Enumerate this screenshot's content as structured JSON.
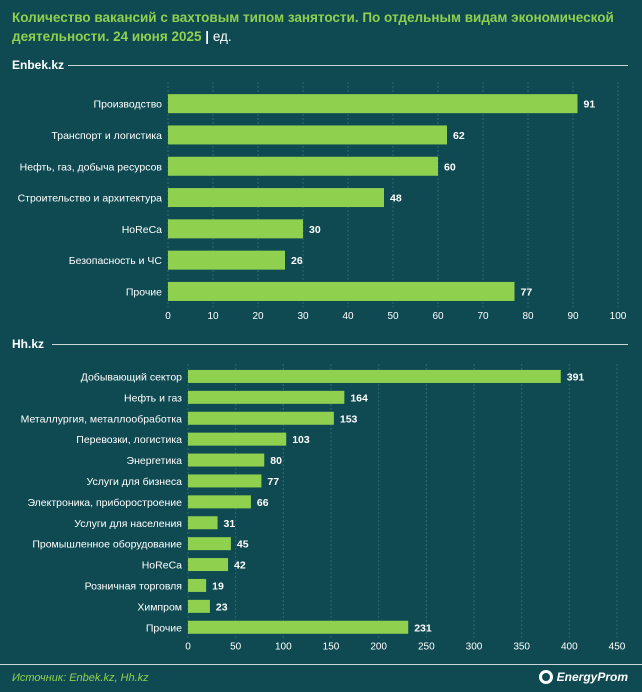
{
  "title": {
    "main": "Количество вакансий с вахтовым типом занятости. По отдельным видам экономической деятельности. 24 июня 2025",
    "separator": "|",
    "unit": "ед."
  },
  "colors": {
    "background": "#0f4a52",
    "bar": "#8fd14f",
    "title": "#8fd14f",
    "text": "#ffffff",
    "grid": "#2f6a72"
  },
  "chart_data": [
    {
      "type": "bar",
      "orientation": "horizontal",
      "section": "Enbek.kz",
      "categories": [
        "Производство",
        "Транспорт и логистика",
        "Нефть, газ, добыча ресурсов",
        "Строительство и архитектура",
        "HoReCa",
        "Безопасность и ЧС",
        "Прочие"
      ],
      "values": [
        91,
        62,
        60,
        48,
        30,
        26,
        77
      ],
      "xlim": [
        0,
        100
      ],
      "ticks": [
        0,
        10,
        20,
        30,
        40,
        50,
        60,
        70,
        80,
        90,
        100
      ],
      "grid": true
    },
    {
      "type": "bar",
      "orientation": "horizontal",
      "section": "Hh.kz",
      "categories": [
        "Добывающий сектор",
        "Нефть и газ",
        "Металлургия, металлообработка",
        "Перевозки, логистика",
        "Энергетика",
        "Услуги для бизнеса",
        "Электроника, приборостроение",
        "Услуги для населения",
        "Промышленное оборудование",
        "HoReCa",
        "Розничная торговля",
        "Химпром",
        "Прочие"
      ],
      "values": [
        391,
        164,
        153,
        103,
        80,
        77,
        66,
        31,
        45,
        42,
        19,
        23,
        231
      ],
      "xlim": [
        0,
        450
      ],
      "ticks": [
        0,
        50,
        100,
        150,
        200,
        250,
        300,
        350,
        400,
        450
      ],
      "grid": true
    }
  ],
  "footer": {
    "source": "Источник: Enbek.kz, Hh.kz",
    "logo": "EnergyProm"
  }
}
